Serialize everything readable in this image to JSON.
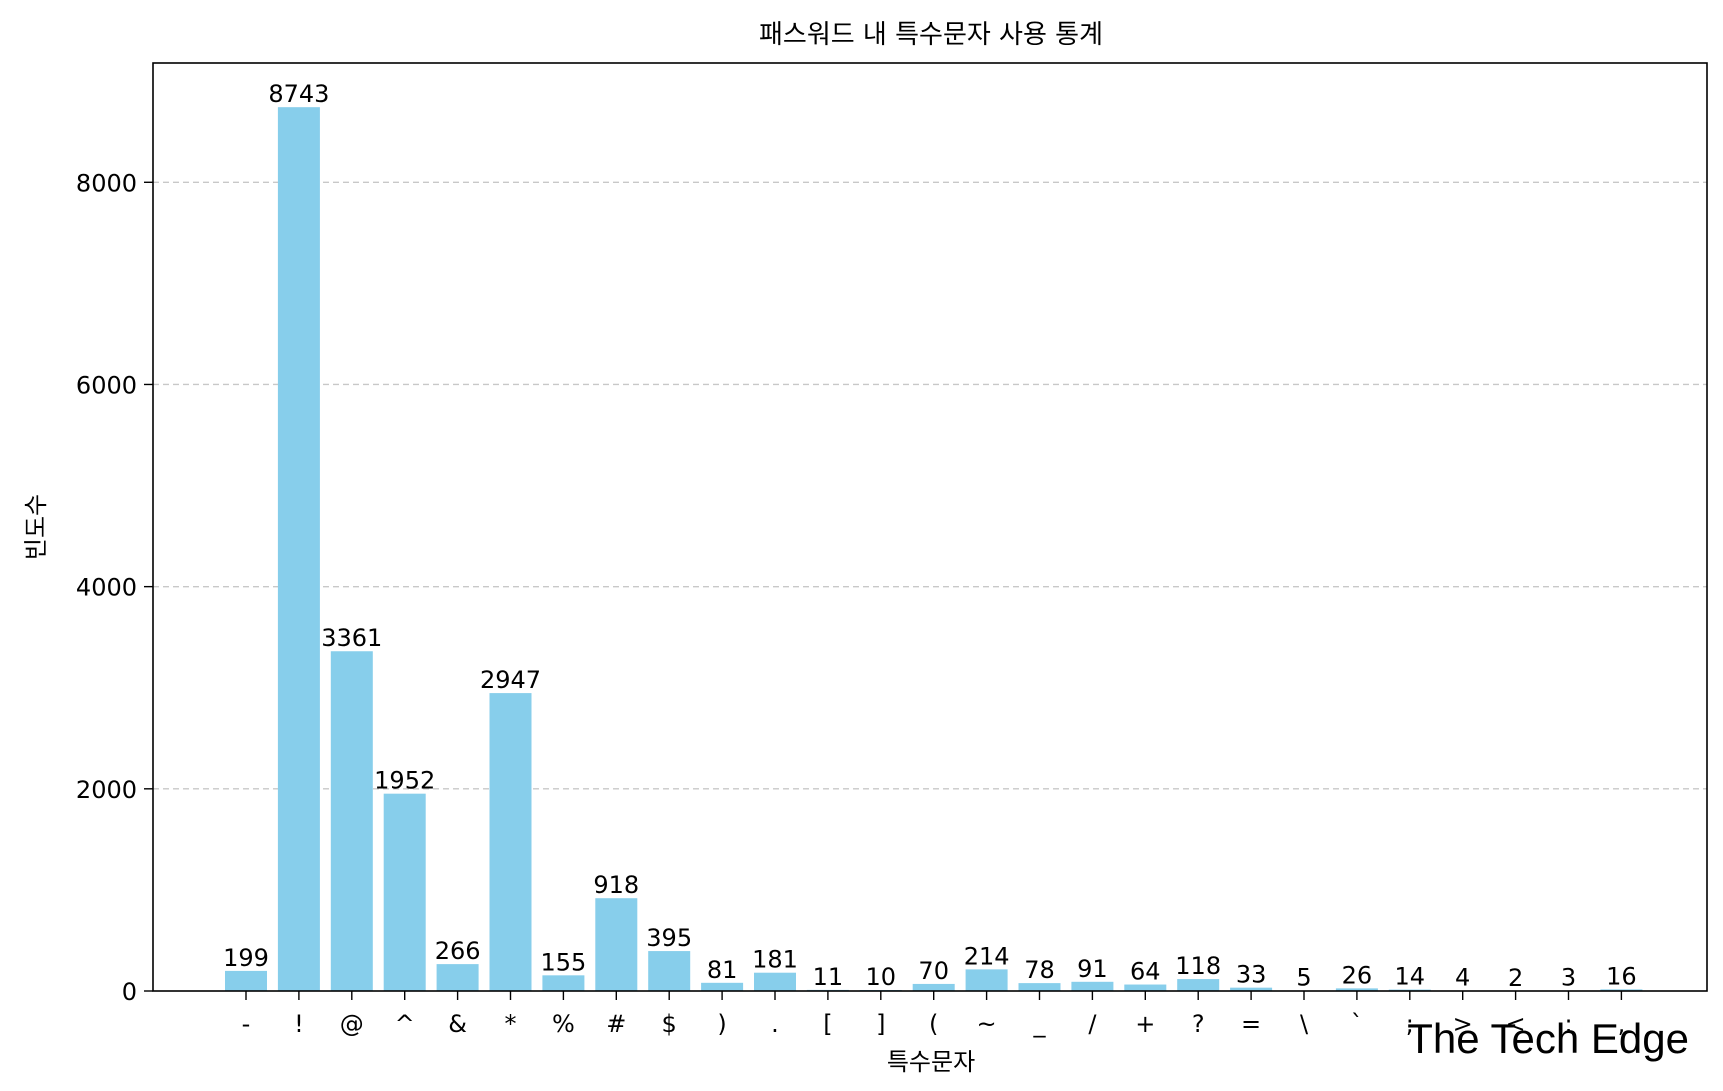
{
  "chart_data": {
    "type": "bar",
    "title": "패스워드 내 특수문자 사용 통계",
    "xlabel": "특수문자",
    "ylabel": "빈도수",
    "categories": [
      "-",
      "!",
      "@",
      "^",
      "&",
      "*",
      "%",
      "#",
      "$",
      ")",
      ".",
      "[",
      "]",
      "(",
      "~",
      "_",
      "/",
      "+",
      "?",
      "=",
      "\\",
      "`",
      ";",
      ">",
      "<",
      ":",
      ","
    ],
    "values": [
      199,
      8743,
      3361,
      1952,
      266,
      2947,
      155,
      918,
      395,
      81,
      181,
      11,
      10,
      70,
      214,
      78,
      91,
      64,
      118,
      33,
      5,
      26,
      14,
      4,
      2,
      3,
      16
    ],
    "ylim": [
      0,
      9180
    ],
    "yticks": [
      0,
      2000,
      4000,
      6000,
      8000
    ],
    "grid": "y-dashed",
    "bar_color": "#87CEEB"
  },
  "watermark": "The Tech Edge"
}
